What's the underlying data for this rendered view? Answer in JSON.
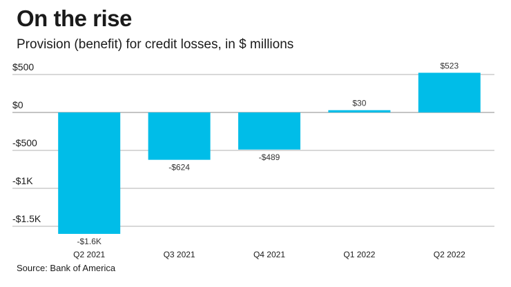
{
  "header": {
    "title": "On the rise",
    "subtitle": "Provision (benefit) for credit losses, in $ millions"
  },
  "footer": {
    "source": "Source: Bank of America"
  },
  "colors": {
    "bar": "#00bde8",
    "grid": "#b0b0b0",
    "baseline": "#888888"
  },
  "chart_data": {
    "type": "bar",
    "categories": [
      "Q2 2021",
      "Q3 2021",
      "Q4 2021",
      "Q1 2022",
      "Q2 2022"
    ],
    "values": [
      -1600,
      -624,
      -489,
      30,
      523
    ],
    "data_labels": [
      "-$1.6K",
      "-$624",
      "-$489",
      "$30",
      "$523"
    ],
    "yticks": [
      500,
      0,
      -500,
      -1000,
      -1500
    ],
    "ytick_labels": [
      "$500",
      "$0",
      "-$500",
      "-$1K",
      "-$1.5K"
    ],
    "ylim": [
      -1600,
      500
    ],
    "grid": true
  }
}
